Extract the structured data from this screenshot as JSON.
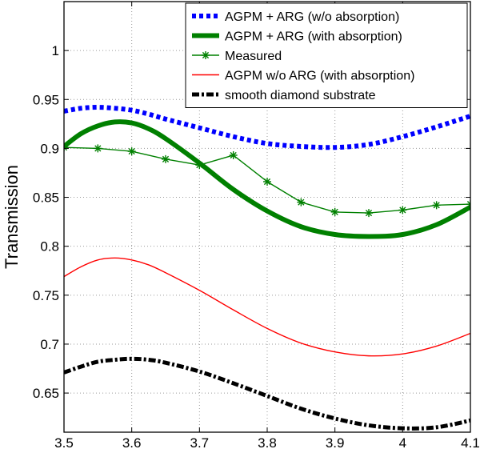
{
  "chart_data": {
    "type": "line",
    "title": "",
    "xlabel": "",
    "ylabel": "Transmission",
    "xlim": [
      3.5,
      4.1
    ],
    "ylim": [
      0.61,
      1.05
    ],
    "grid": true,
    "legend_position": "top-right",
    "x_ticks": [
      "3.5",
      "3.6",
      "3.7",
      "3.8",
      "3.9",
      "4",
      "4.1"
    ],
    "x_tick_values": [
      3.5,
      3.6,
      3.7,
      3.8,
      3.9,
      4.0,
      4.1
    ],
    "y_ticks": [
      "0.65",
      "0.7",
      "0.75",
      "0.8",
      "0.85",
      "0.9",
      "0.95",
      "1"
    ],
    "y_tick_values": [
      0.65,
      0.7,
      0.75,
      0.8,
      0.85,
      0.9,
      0.95,
      1.0
    ],
    "series": [
      {
        "name": "AGPM + ARG (w/o absorption)",
        "style": "dotted-thick",
        "color": "#0000ff",
        "x": [
          3.5,
          3.525,
          3.55,
          3.575,
          3.6,
          3.625,
          3.65,
          3.7,
          3.75,
          3.8,
          3.85,
          3.9,
          3.95,
          4.0,
          4.05,
          4.1
        ],
        "values": [
          0.938,
          0.941,
          0.942,
          0.941,
          0.939,
          0.935,
          0.93,
          0.921,
          0.912,
          0.905,
          0.902,
          0.901,
          0.904,
          0.912,
          0.922,
          0.933
        ]
      },
      {
        "name": "AGPM + ARG (with absorption)",
        "style": "solid-thick",
        "color": "#008000",
        "x": [
          3.5,
          3.525,
          3.55,
          3.575,
          3.6,
          3.625,
          3.65,
          3.7,
          3.75,
          3.8,
          3.85,
          3.9,
          3.95,
          4.0,
          4.05,
          4.1
        ],
        "values": [
          0.902,
          0.915,
          0.923,
          0.927,
          0.926,
          0.92,
          0.91,
          0.885,
          0.858,
          0.836,
          0.82,
          0.812,
          0.81,
          0.812,
          0.822,
          0.84
        ]
      },
      {
        "name": "Measured",
        "style": "solid-star",
        "color": "#008000",
        "x": [
          3.5,
          3.55,
          3.6,
          3.65,
          3.7,
          3.75,
          3.8,
          3.85,
          3.9,
          3.95,
          4.0,
          4.05,
          4.1
        ],
        "values": [
          0.901,
          0.9,
          0.897,
          0.889,
          0.883,
          0.893,
          0.866,
          0.845,
          0.835,
          0.834,
          0.837,
          0.842,
          0.843
        ]
      },
      {
        "name": "AGPM w/o ARG (with absorption)",
        "style": "solid-thin",
        "color": "#ff0000",
        "x": [
          3.5,
          3.525,
          3.55,
          3.575,
          3.6,
          3.625,
          3.65,
          3.7,
          3.75,
          3.8,
          3.85,
          3.9,
          3.95,
          4.0,
          4.05,
          4.1
        ],
        "values": [
          0.769,
          0.779,
          0.786,
          0.788,
          0.786,
          0.781,
          0.773,
          0.755,
          0.735,
          0.716,
          0.701,
          0.692,
          0.688,
          0.69,
          0.698,
          0.711
        ]
      },
      {
        "name": "smooth diamond substrate",
        "style": "dashdot-thick",
        "color": "#000000",
        "x": [
          3.5,
          3.525,
          3.55,
          3.575,
          3.6,
          3.625,
          3.65,
          3.7,
          3.75,
          3.8,
          3.85,
          3.9,
          3.95,
          4.0,
          4.05,
          4.1
        ],
        "values": [
          0.671,
          0.677,
          0.682,
          0.684,
          0.685,
          0.684,
          0.681,
          0.672,
          0.66,
          0.647,
          0.634,
          0.624,
          0.617,
          0.614,
          0.615,
          0.622
        ]
      }
    ]
  }
}
